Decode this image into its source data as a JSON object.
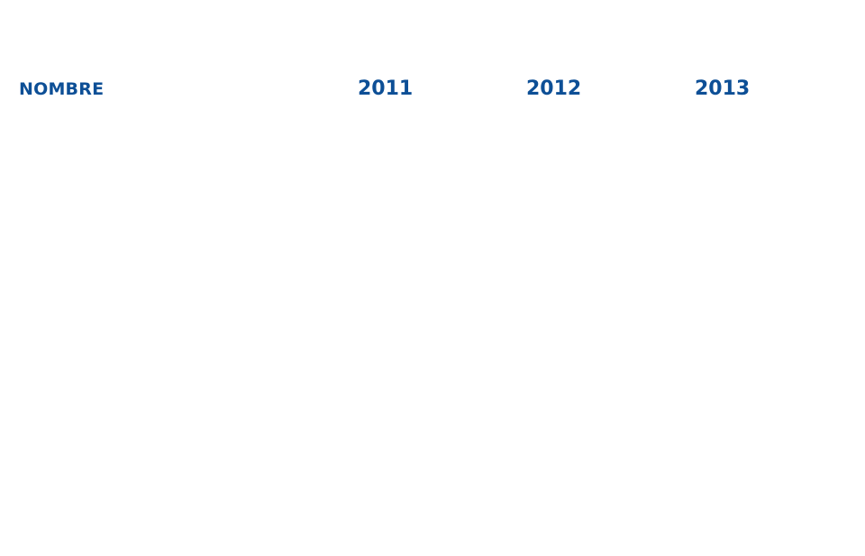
{
  "table": {
    "columns": {
      "name": "NOMBRE",
      "year_2011": "2011",
      "year_2012": "2012",
      "year_2013": "2013"
    },
    "rows": []
  },
  "colors": {
    "header_text": "#0d4f96",
    "background": "#ffffff"
  }
}
